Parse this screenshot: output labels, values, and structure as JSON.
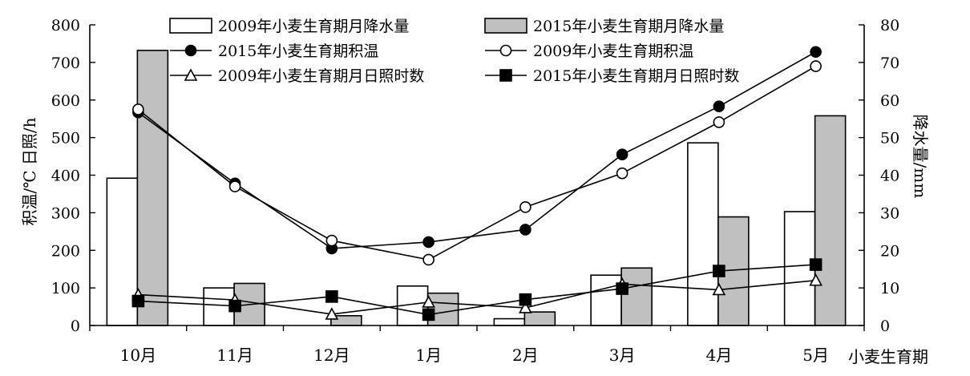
{
  "chart_data": {
    "type": "bar",
    "categories": [
      "10月",
      "11月",
      "12月",
      "1月",
      "2月",
      "3月",
      "4月",
      "5月"
    ],
    "xlabel": "小麦生育期",
    "ylabel_left": "积温/℃   日照/h",
    "ylabel_right": "降水量/mm",
    "ylim_left": [
      0,
      800
    ],
    "ylim_right": [
      0,
      80
    ],
    "left_ticks": [
      0,
      100,
      200,
      300,
      400,
      500,
      600,
      700,
      800
    ],
    "right_ticks": [
      0,
      10,
      20,
      30,
      40,
      50,
      60,
      70,
      80
    ],
    "grid": false,
    "legend_position": "top-center",
    "bar_series": [
      {
        "name": "2009年小麦生育期月降水量",
        "axis": "right",
        "fill": "#ffffff",
        "values": [
          39.2,
          10,
          0,
          10.5,
          1.8,
          13.4,
          48.6,
          30.3
        ]
      },
      {
        "name": "2015年小麦生育期月降水量",
        "axis": "right",
        "fill": "#c0c0c0",
        "values": [
          73.2,
          11.2,
          2.6,
          8.6,
          3.6,
          15.3,
          28.9,
          55.8
        ]
      }
    ],
    "line_series": [
      {
        "name": "2015年小麦生育期积温",
        "axis": "left",
        "marker": "circle-filled",
        "values": [
          567,
          378,
          205,
          222,
          255,
          455,
          583,
          728
        ]
      },
      {
        "name": "2009年小麦生育期积温",
        "axis": "left",
        "marker": "circle-open",
        "values": [
          575,
          370,
          226,
          175,
          315,
          405,
          541,
          690
        ]
      },
      {
        "name": "2009年小麦生育期月日照时数",
        "axis": "left",
        "marker": "triangle-open",
        "values": [
          82,
          68,
          30,
          62,
          47,
          110,
          95,
          120
        ]
      },
      {
        "name": "2015年小麦生育期月日照时数",
        "axis": "left",
        "marker": "square-filled",
        "values": [
          65,
          52,
          77,
          29,
          69,
          98,
          145,
          162
        ]
      }
    ]
  }
}
